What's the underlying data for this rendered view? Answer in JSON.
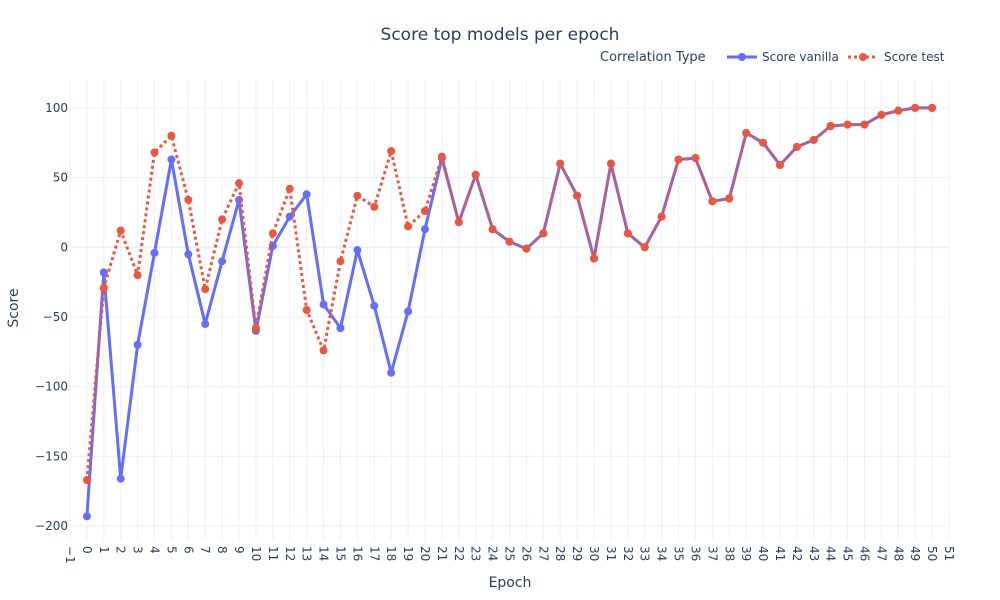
{
  "chart_data": {
    "type": "line",
    "title": "Score top models per epoch",
    "xlabel": "Epoch",
    "ylabel": "Score",
    "xlim": [
      -1,
      51
    ],
    "ylim": [
      -210,
      120
    ],
    "x_ticks": [
      -1,
      0,
      1,
      2,
      3,
      4,
      5,
      6,
      7,
      8,
      9,
      10,
      11,
      12,
      13,
      14,
      15,
      16,
      17,
      18,
      19,
      20,
      21,
      22,
      23,
      24,
      25,
      26,
      27,
      28,
      29,
      30,
      31,
      32,
      33,
      34,
      35,
      36,
      37,
      38,
      39,
      40,
      41,
      42,
      43,
      44,
      45,
      46,
      47,
      48,
      49,
      50,
      51
    ],
    "y_ticks": [
      100,
      50,
      0,
      -50,
      -100,
      -150,
      -200
    ],
    "y_tick_labels": [
      "100",
      "50",
      "0",
      "−50",
      "−100",
      "−150",
      "−200"
    ],
    "grid": true,
    "legend": {
      "title": "Correlation Type",
      "placement": "top-right"
    },
    "series": [
      {
        "name": "Score vanilla",
        "color": "#636efa",
        "dash": "solid",
        "x": [
          0,
          1,
          2,
          3,
          4,
          5,
          6,
          7,
          8,
          9,
          10,
          11,
          12,
          13,
          14,
          15,
          16,
          17,
          18,
          19,
          20,
          21,
          22,
          23,
          24,
          25,
          26,
          27,
          28,
          29,
          30,
          31,
          32,
          33,
          34,
          35,
          36,
          37,
          38,
          39,
          40,
          41,
          42,
          43,
          44,
          45,
          46,
          47,
          48,
          49,
          50
        ],
        "y": [
          -193,
          -18,
          -166,
          -70,
          -4,
          63,
          -5,
          -55,
          -10,
          34,
          -60,
          1,
          22,
          38,
          -41,
          -58,
          -2,
          -42,
          -90,
          -46,
          13,
          64,
          18,
          52,
          13,
          4,
          -1,
          10,
          60,
          37,
          -8,
          60,
          10,
          0,
          22,
          63,
          64,
          33,
          35,
          82,
          75,
          59,
          72,
          77,
          87,
          88,
          88,
          95,
          98,
          100,
          100
        ]
      },
      {
        "name": "Score test",
        "color": "#ef553b",
        "dash": "dot",
        "x": [
          0,
          1,
          2,
          3,
          4,
          5,
          6,
          7,
          8,
          9,
          10,
          11,
          12,
          13,
          14,
          15,
          16,
          17,
          18,
          19,
          20,
          21,
          22,
          23,
          24,
          25,
          26,
          27,
          28,
          29,
          30,
          31,
          32,
          33,
          34,
          35,
          36,
          37,
          38,
          39,
          40,
          41,
          42,
          43,
          44,
          45,
          46,
          47,
          48,
          49,
          50
        ],
        "y": [
          -167,
          -29,
          12,
          -20,
          68,
          80,
          34,
          -30,
          20,
          46,
          -58,
          10,
          42,
          -45,
          -74,
          -10,
          37,
          29,
          69,
          15,
          26,
          65,
          18,
          52,
          13,
          4,
          -1,
          10,
          60,
          37,
          -8,
          60,
          10,
          0,
          22,
          63,
          64,
          33,
          35,
          82,
          75,
          59,
          72,
          77,
          87,
          88,
          88,
          95,
          98,
          100,
          100
        ]
      }
    ]
  }
}
